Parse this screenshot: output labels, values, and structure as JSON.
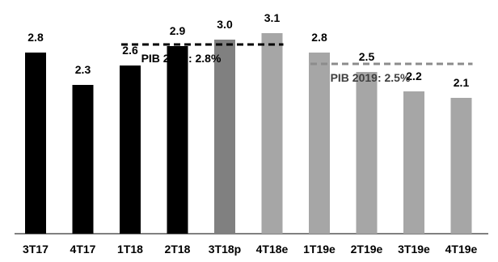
{
  "chart_data": {
    "type": "bar",
    "title": "",
    "xlabel": "",
    "ylabel": "",
    "ylim": [
      0,
      3.2
    ],
    "grid": false,
    "categories": [
      "3T17",
      "4T17",
      "1T18",
      "2T18",
      "3T18p",
      "4T18e",
      "1T19e",
      "2T19e",
      "3T19e",
      "4T19e"
    ],
    "values": [
      2.8,
      2.3,
      2.6,
      2.9,
      3.0,
      3.1,
      2.8,
      2.5,
      2.2,
      2.1
    ],
    "value_labels": [
      "2.8",
      "2.3",
      "2.6",
      "2.9",
      "3.0",
      "3.1",
      "2.8",
      "2.5",
      "2.2",
      "2.1"
    ],
    "bar_colors": [
      "#000000",
      "#000000",
      "#000000",
      "#000000",
      "#808080",
      "#a6a6a6",
      "#a6a6a6",
      "#a6a6a6",
      "#a6a6a6",
      "#a6a6a6"
    ],
    "reference_lines": [
      {
        "label": "PIB 2018: 2.8%",
        "value": 2.8,
        "from_category": "1T18",
        "to_category": "4T18e",
        "color": "#000000",
        "label_color": "#000000"
      },
      {
        "label": "PIB 2019: 2.5%",
        "value": 2.5,
        "from_category": "1T19e",
        "to_category": "4T19e",
        "color": "#8c8c8c",
        "label_color": "#404040"
      }
    ]
  }
}
